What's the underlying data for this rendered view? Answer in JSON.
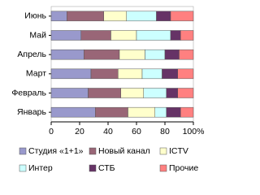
{
  "chart_data": {
    "type": "stacked-bar-horizontal",
    "categories": [
      "Июнь",
      "Май",
      "Апрель",
      "Март",
      "Февраль",
      "Январь"
    ],
    "series": [
      {
        "name": "Студия «1+1»",
        "color": "#9999cc",
        "values": [
          11,
          21,
          23,
          28,
          26,
          31
        ]
      },
      {
        "name": "Новый канал",
        "color": "#996677",
        "values": [
          26,
          21,
          25,
          19,
          23,
          23
        ]
      },
      {
        "name": "ICTV",
        "color": "#ffffcc",
        "values": [
          16,
          18,
          18,
          17,
          16,
          19
        ]
      },
      {
        "name": "Интер",
        "color": "#ccffff",
        "values": [
          21,
          24,
          14,
          14,
          16,
          8
        ]
      },
      {
        "name": "СТБ",
        "color": "#663366",
        "values": [
          10,
          7,
          10,
          11,
          8,
          10
        ]
      },
      {
        "name": "Прочие",
        "color": "#ff8080",
        "values": [
          16,
          9,
          10,
          11,
          11,
          9
        ]
      }
    ],
    "xlim": [
      0,
      100
    ],
    "xticks": [
      0,
      20,
      40,
      60,
      80,
      {
        "value": 100,
        "label": "100%"
      }
    ],
    "grid": false
  }
}
